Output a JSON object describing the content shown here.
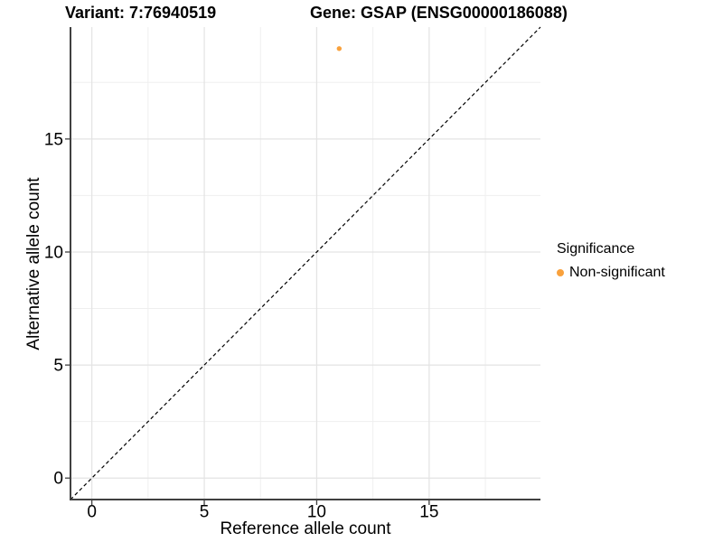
{
  "chart_data": {
    "type": "scatter",
    "titles": {
      "left": "Variant: 7:76940519",
      "right": "Gene: GSAP (ENSG00000186088)"
    },
    "xlabel": "Reference allele count",
    "ylabel": "Alternative allele count",
    "xlim": [
      -0.95,
      19.95
    ],
    "ylim": [
      -0.95,
      19.95
    ],
    "ticks": {
      "values": [
        0,
        5,
        10,
        15
      ],
      "labels": [
        "0",
        "5",
        "10",
        "15"
      ]
    },
    "minor_gridlines": [
      2.5,
      7.5,
      12.5,
      17.5
    ],
    "grid": "major+minor, white panel background",
    "identity_line": {
      "type": "abline",
      "slope": 1,
      "intercept": 0,
      "dashed": true,
      "color": "#000000"
    },
    "series": [
      {
        "name": "Non-significant",
        "color": "#F9A13C",
        "points": [
          {
            "x": 11,
            "y": 19
          }
        ]
      }
    ],
    "legend": {
      "title": "Significance",
      "position": "right",
      "items": [
        {
          "label": "Non-significant",
          "color": "#F9A13C"
        }
      ]
    },
    "colors": {
      "background": "#FFFFFF",
      "grid_major": "#E3E3E3",
      "grid_minor": "#EFEFEF",
      "axis_line": "#404040",
      "text": "#000000",
      "point": "#F9A13C"
    }
  }
}
